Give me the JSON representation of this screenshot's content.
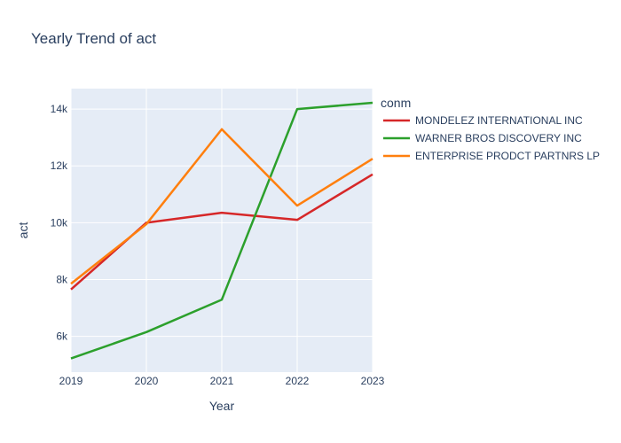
{
  "chart_data": {
    "type": "line",
    "title": "Yearly Trend of act",
    "xlabel": "Year",
    "ylabel": "act",
    "x": [
      2019,
      2020,
      2021,
      2022,
      2023
    ],
    "x_ticks": [
      "2019",
      "2020",
      "2021",
      "2022",
      "2023"
    ],
    "y_ticks": [
      6000,
      8000,
      10000,
      12000,
      14000
    ],
    "y_tick_labels": [
      "6k",
      "8k",
      "10k",
      "12k",
      "14k"
    ],
    "xlim": [
      2019,
      2023
    ],
    "ylim": [
      4740,
      14720
    ],
    "grid": true,
    "legend_title": "conm",
    "legend_position": "right",
    "series": [
      {
        "name": "MONDELEZ INTERNATIONAL INC",
        "color": "#d62728",
        "values": [
          7650,
          10000,
          10350,
          10100,
          11700
        ]
      },
      {
        "name": "WARNER BROS DISCOVERY INC",
        "color": "#2ca02c",
        "values": [
          5220,
          6150,
          7290,
          14000,
          14220
        ]
      },
      {
        "name": "ENTERPRISE PRODCT PARTNRS LP",
        "color": "#ff7f0e",
        "values": [
          7850,
          9950,
          13290,
          10600,
          12250
        ]
      }
    ]
  }
}
